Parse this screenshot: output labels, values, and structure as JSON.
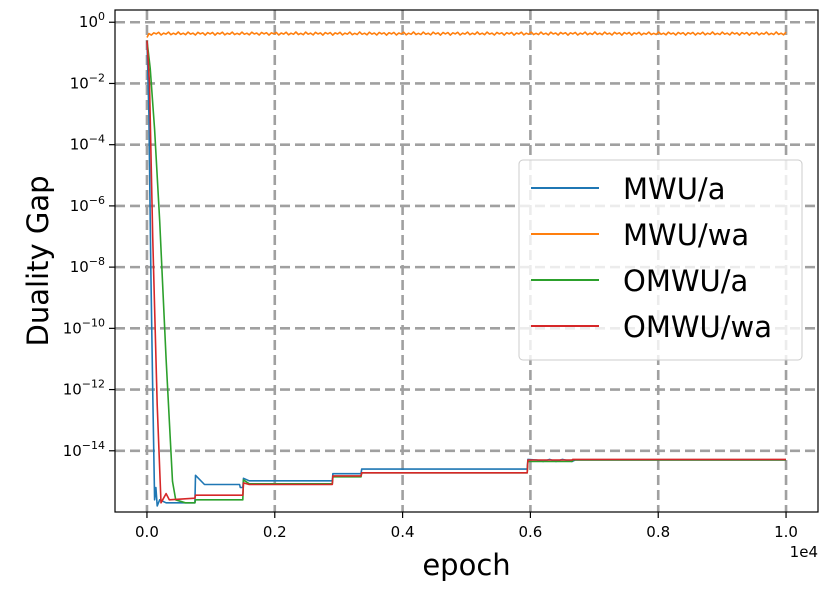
{
  "chart_data": {
    "type": "line",
    "xlabel": "epoch",
    "ylabel": "Duality Gap",
    "x_offset_label": "1e4",
    "x_scale_factor": 10000,
    "xlim": [
      -0.05,
      1.05
    ],
    "yscale": "log",
    "ylim_exponent": [
      -16.0,
      0.4
    ],
    "grid": true,
    "legend_position": "center-right",
    "x_ticks": [
      0.0,
      0.2,
      0.4,
      0.6,
      0.8,
      1.0
    ],
    "x_tick_labels": [
      "0.0",
      "0.2",
      "0.4",
      "0.6",
      "0.8",
      "1.0"
    ],
    "y_tick_exponents": [
      0,
      -2,
      -4,
      -6,
      -8,
      -10,
      -12,
      -14
    ],
    "y_tick_labels": [
      {
        "base": "10",
        "exp": "0"
      },
      {
        "base": "10",
        "exp": "−2"
      },
      {
        "base": "10",
        "exp": "−4"
      },
      {
        "base": "10",
        "exp": "−6"
      },
      {
        "base": "10",
        "exp": "−8"
      },
      {
        "base": "10",
        "exp": "−10"
      },
      {
        "base": "10",
        "exp": "−12"
      },
      {
        "base": "10",
        "exp": "−14"
      }
    ],
    "series": [
      {
        "name": "MWU/a",
        "color": "#1f77b4",
        "points": [
          [
            0.0,
            -0.6
          ],
          [
            0.003,
            -3.0
          ],
          [
            0.006,
            -8.0
          ],
          [
            0.009,
            -12.0
          ],
          [
            0.012,
            -15.6
          ],
          [
            0.014,
            -15.2
          ],
          [
            0.016,
            -15.8
          ],
          [
            0.02,
            -15.6
          ],
          [
            0.03,
            -15.7
          ],
          [
            0.075,
            -15.7
          ],
          [
            0.076,
            -14.8
          ],
          [
            0.09,
            -15.1
          ],
          [
            0.145,
            -15.1
          ],
          [
            0.146,
            -15.2
          ],
          [
            0.15,
            -15.2
          ],
          [
            0.151,
            -14.9
          ],
          [
            0.16,
            -14.98
          ],
          [
            0.29,
            -14.98
          ],
          [
            0.291,
            -14.75
          ],
          [
            0.335,
            -14.75
          ],
          [
            0.336,
            -14.6
          ],
          [
            0.595,
            -14.6
          ],
          [
            0.596,
            -14.28
          ],
          [
            0.61,
            -14.3
          ],
          [
            0.62,
            -14.35
          ],
          [
            0.63,
            -14.28
          ],
          [
            0.64,
            -14.35
          ],
          [
            0.65,
            -14.28
          ],
          [
            0.665,
            -14.35
          ],
          [
            0.67,
            -14.3
          ],
          [
            1.0,
            -14.3
          ]
        ]
      },
      {
        "name": "MWU/wa",
        "color": "#ff7f0e",
        "points": [
          [
            0.0,
            -0.5
          ],
          [
            0.003,
            -0.37
          ],
          [
            1.0,
            -0.37
          ]
        ]
      },
      {
        "name": "OMWU/a",
        "color": "#2ca02c",
        "points": [
          [
            0.0,
            -0.6
          ],
          [
            0.005,
            -1.5
          ],
          [
            0.012,
            -3.5
          ],
          [
            0.02,
            -6.5
          ],
          [
            0.03,
            -11.0
          ],
          [
            0.04,
            -15.0
          ],
          [
            0.045,
            -15.6
          ],
          [
            0.06,
            -15.7
          ],
          [
            0.075,
            -15.7
          ],
          [
            0.076,
            -15.6
          ],
          [
            0.15,
            -15.6
          ],
          [
            0.151,
            -14.95
          ],
          [
            0.16,
            -15.08
          ],
          [
            0.29,
            -15.08
          ],
          [
            0.291,
            -14.85
          ],
          [
            0.335,
            -14.85
          ],
          [
            0.336,
            -14.72
          ],
          [
            0.595,
            -14.72
          ],
          [
            0.596,
            -14.35
          ],
          [
            0.665,
            -14.35
          ],
          [
            0.666,
            -14.3
          ],
          [
            1.0,
            -14.3
          ]
        ]
      },
      {
        "name": "OMWU/wa",
        "color": "#d62728",
        "points": [
          [
            0.0,
            -0.6
          ],
          [
            0.004,
            -2.0
          ],
          [
            0.009,
            -7.0
          ],
          [
            0.016,
            -12.5
          ],
          [
            0.022,
            -15.7
          ],
          [
            0.03,
            -15.4
          ],
          [
            0.035,
            -15.6
          ],
          [
            0.075,
            -15.55
          ],
          [
            0.076,
            -15.45
          ],
          [
            0.15,
            -15.45
          ],
          [
            0.151,
            -15.05
          ],
          [
            0.16,
            -15.1
          ],
          [
            0.29,
            -15.1
          ],
          [
            0.291,
            -14.82
          ],
          [
            0.335,
            -14.82
          ],
          [
            0.336,
            -14.72
          ],
          [
            0.595,
            -14.72
          ],
          [
            0.596,
            -14.3
          ],
          [
            0.665,
            -14.3
          ],
          [
            0.666,
            -14.28
          ],
          [
            1.0,
            -14.28
          ]
        ]
      }
    ]
  }
}
